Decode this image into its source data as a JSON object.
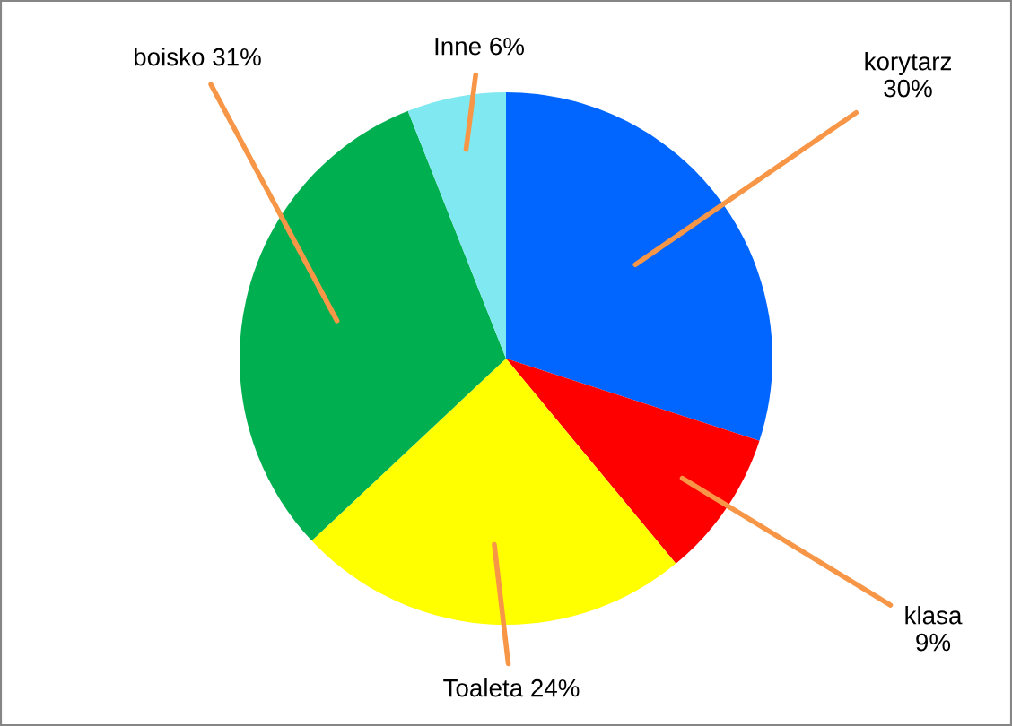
{
  "chart_data": {
    "type": "pie",
    "categories": [
      "korytarz",
      "klasa",
      "Toaleta",
      "boisko",
      "Inne"
    ],
    "values": [
      30,
      9,
      24,
      31,
      6
    ],
    "value_labels": [
      "30%",
      "9%",
      "24%",
      "31%",
      "6%"
    ],
    "colors": [
      "#0066ff",
      "#ff0000",
      "#ffff00",
      "#00b050",
      "#80e8f0"
    ]
  }
}
